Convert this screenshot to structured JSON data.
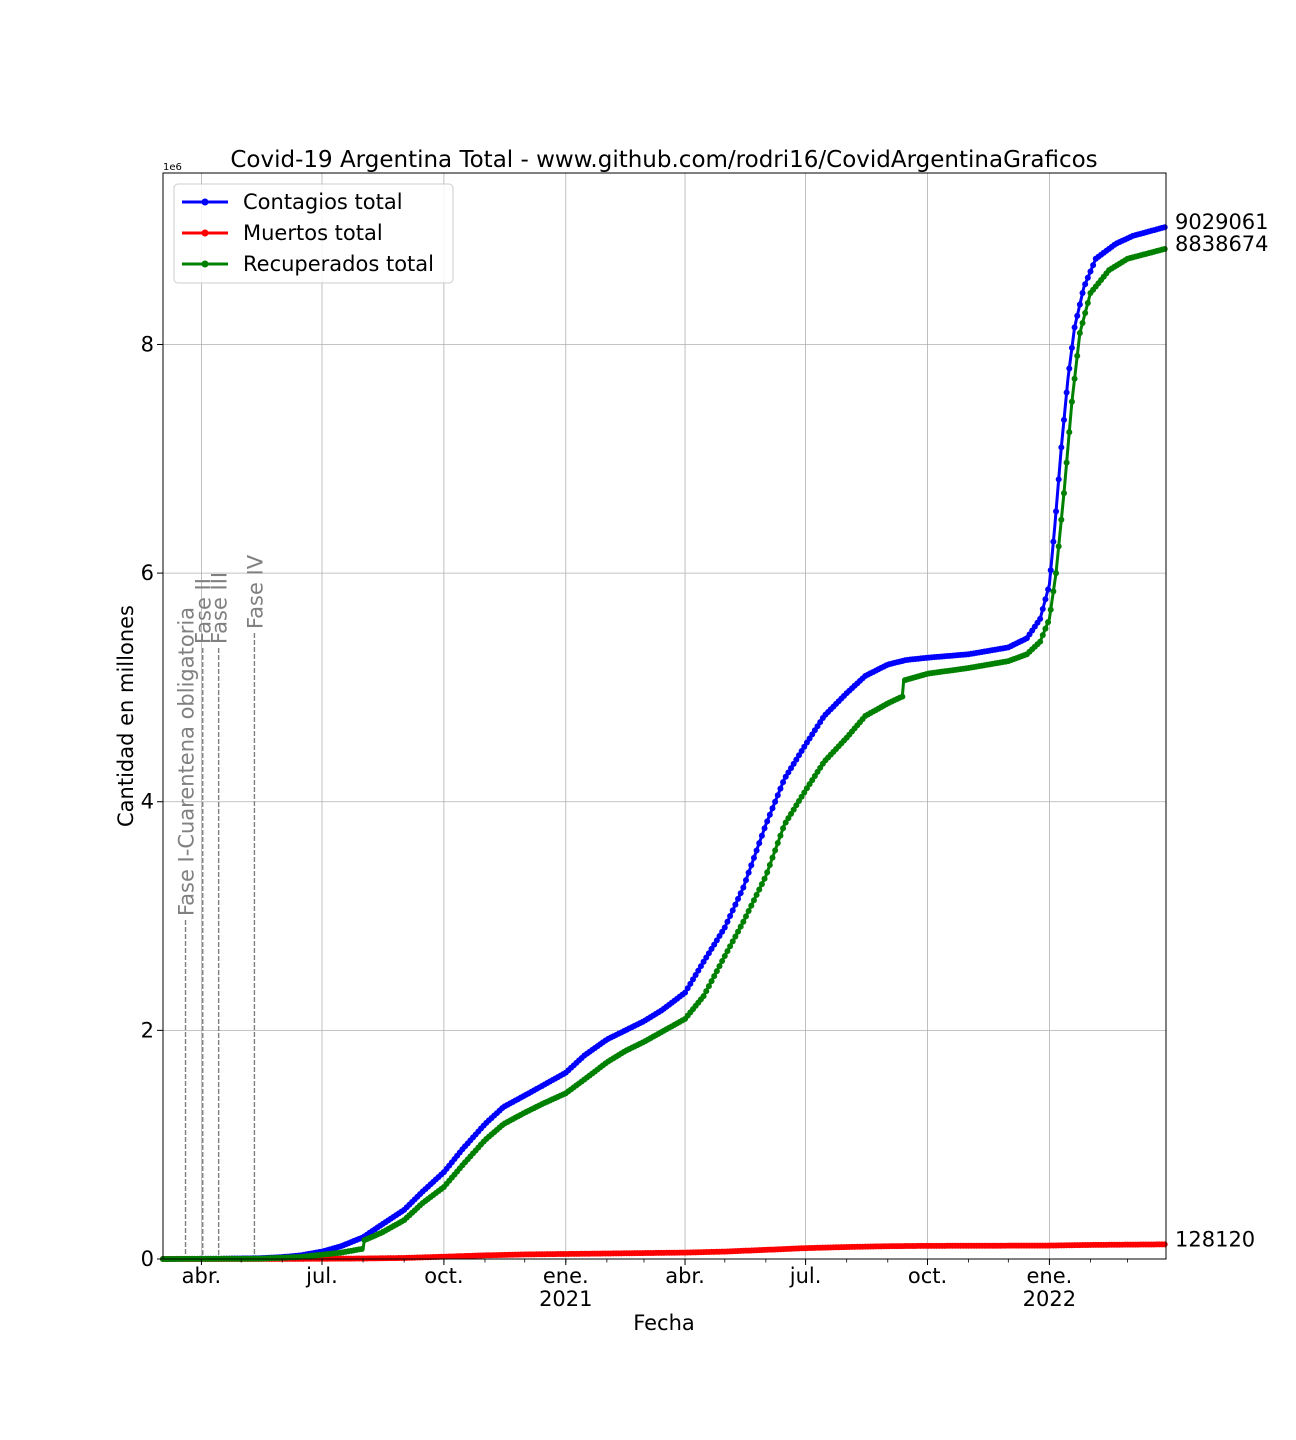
{
  "chart_data": {
    "type": "line",
    "title": "Covid-19 Argentina Total - www.github.com/rodri16/CovidArgentinaGraficos",
    "xlabel": "Fecha",
    "ylabel": "Cantidad en millones",
    "y_offset_label": "1e6",
    "ylim": [
      0,
      9500000
    ],
    "xlim": [
      "2020-03-03",
      "2022-03-30"
    ],
    "grid": true,
    "legend_position": "top-left",
    "x_ticks": [
      {
        "date": "2020-04-01",
        "label": "abr.",
        "sublabel": ""
      },
      {
        "date": "2020-07-01",
        "label": "jul.",
        "sublabel": ""
      },
      {
        "date": "2020-10-01",
        "label": "oct.",
        "sublabel": ""
      },
      {
        "date": "2021-01-01",
        "label": "ene.",
        "sublabel": "2021"
      },
      {
        "date": "2021-04-01",
        "label": "abr.",
        "sublabel": ""
      },
      {
        "date": "2021-07-01",
        "label": "jul.",
        "sublabel": ""
      },
      {
        "date": "2021-10-01",
        "label": "oct.",
        "sublabel": ""
      },
      {
        "date": "2022-01-01",
        "label": "ene.",
        "sublabel": "2022"
      }
    ],
    "y_ticks": [
      {
        "value": 0,
        "label": "0"
      },
      {
        "value": 2000000,
        "label": "2"
      },
      {
        "value": 4000000,
        "label": "4"
      },
      {
        "value": 6000000,
        "label": "6"
      },
      {
        "value": 8000000,
        "label": "8"
      }
    ],
    "phases": [
      {
        "date": "2020-03-20",
        "label": "Fase I-Cuarentena obligatoria"
      },
      {
        "date": "2020-04-02",
        "label": "Fase II"
      },
      {
        "date": "2020-04-14",
        "label": "Fase III"
      },
      {
        "date": "2020-05-11",
        "label": "Fase IV"
      }
    ],
    "series": [
      {
        "name": "Contagios total",
        "color": "#0000ff",
        "end_label": "9029061",
        "points": [
          [
            "2020-03-03",
            0
          ],
          [
            "2020-04-15",
            2500
          ],
          [
            "2020-05-15",
            7000
          ],
          [
            "2020-06-01",
            17000
          ],
          [
            "2020-06-15",
            32000
          ],
          [
            "2020-07-01",
            65000
          ],
          [
            "2020-07-15",
            110000
          ],
          [
            "2020-08-01",
            190000
          ],
          [
            "2020-08-15",
            300000
          ],
          [
            "2020-09-01",
            430000
          ],
          [
            "2020-09-15",
            590000
          ],
          [
            "2020-10-01",
            760000
          ],
          [
            "2020-10-15",
            960000
          ],
          [
            "2020-11-01",
            1180000
          ],
          [
            "2020-11-15",
            1330000
          ],
          [
            "2020-12-01",
            1430000
          ],
          [
            "2020-12-15",
            1520000
          ],
          [
            "2021-01-01",
            1630000
          ],
          [
            "2021-01-15",
            1780000
          ],
          [
            "2021-02-01",
            1920000
          ],
          [
            "2021-02-15",
            2000000
          ],
          [
            "2021-03-01",
            2080000
          ],
          [
            "2021-03-15",
            2180000
          ],
          [
            "2021-04-01",
            2330000
          ],
          [
            "2021-04-15",
            2600000
          ],
          [
            "2021-05-01",
            2900000
          ],
          [
            "2021-05-15",
            3250000
          ],
          [
            "2021-06-01",
            3800000
          ],
          [
            "2021-06-15",
            4200000
          ],
          [
            "2021-07-01",
            4500000
          ],
          [
            "2021-07-15",
            4750000
          ],
          [
            "2021-08-01",
            4950000
          ],
          [
            "2021-08-15",
            5100000
          ],
          [
            "2021-09-01",
            5200000
          ],
          [
            "2021-09-15",
            5240000
          ],
          [
            "2021-10-01",
            5260000
          ],
          [
            "2021-11-01",
            5290000
          ],
          [
            "2021-12-01",
            5350000
          ],
          [
            "2021-12-15",
            5430000
          ],
          [
            "2021-12-25",
            5600000
          ],
          [
            "2022-01-01",
            5900000
          ],
          [
            "2022-01-05",
            6400000
          ],
          [
            "2022-01-10",
            7100000
          ],
          [
            "2022-01-15",
            7700000
          ],
          [
            "2022-01-20",
            8150000
          ],
          [
            "2022-01-27",
            8500000
          ],
          [
            "2022-02-05",
            8750000
          ],
          [
            "2022-02-20",
            8880000
          ],
          [
            "2022-03-05",
            8950000
          ],
          [
            "2022-03-30",
            9029061
          ]
        ]
      },
      {
        "name": "Muertos total",
        "color": "#ff0000",
        "end_label": "128120",
        "points": [
          [
            "2020-03-03",
            0
          ],
          [
            "2020-06-01",
            600
          ],
          [
            "2020-08-01",
            4200
          ],
          [
            "2020-09-01",
            9000
          ],
          [
            "2020-10-01",
            20000
          ],
          [
            "2020-11-01",
            32000
          ],
          [
            "2020-12-01",
            40000
          ],
          [
            "2021-01-01",
            44000
          ],
          [
            "2021-02-01",
            48000
          ],
          [
            "2021-03-01",
            52000
          ],
          [
            "2021-04-01",
            56000
          ],
          [
            "2021-05-01",
            65000
          ],
          [
            "2021-06-01",
            80000
          ],
          [
            "2021-07-01",
            95000
          ],
          [
            "2021-08-01",
            105000
          ],
          [
            "2021-09-01",
            112000
          ],
          [
            "2021-10-01",
            115000
          ],
          [
            "2021-12-01",
            116500
          ],
          [
            "2022-01-01",
            117500
          ],
          [
            "2022-02-01",
            123000
          ],
          [
            "2022-03-30",
            128120
          ]
        ]
      },
      {
        "name": "Recuperados total",
        "color": "#008000",
        "end_label": "8838674",
        "points": [
          [
            "2020-03-03",
            0
          ],
          [
            "2020-05-15",
            3000
          ],
          [
            "2020-06-15",
            18000
          ],
          [
            "2020-07-15",
            55000
          ],
          [
            "2020-08-01",
            90000
          ],
          [
            "2020-08-02",
            165000
          ],
          [
            "2020-08-15",
            230000
          ],
          [
            "2020-09-01",
            340000
          ],
          [
            "2020-09-15",
            490000
          ],
          [
            "2020-10-01",
            630000
          ],
          [
            "2020-10-15",
            820000
          ],
          [
            "2020-11-01",
            1040000
          ],
          [
            "2020-11-15",
            1180000
          ],
          [
            "2020-12-01",
            1280000
          ],
          [
            "2020-12-15",
            1360000
          ],
          [
            "2021-01-01",
            1450000
          ],
          [
            "2021-01-15",
            1570000
          ],
          [
            "2021-02-01",
            1720000
          ],
          [
            "2021-02-15",
            1820000
          ],
          [
            "2021-03-01",
            1900000
          ],
          [
            "2021-03-15",
            1990000
          ],
          [
            "2021-04-01",
            2100000
          ],
          [
            "2021-04-15",
            2300000
          ],
          [
            "2021-05-01",
            2650000
          ],
          [
            "2021-05-15",
            2950000
          ],
          [
            "2021-06-01",
            3350000
          ],
          [
            "2021-06-15",
            3800000
          ],
          [
            "2021-07-01",
            4100000
          ],
          [
            "2021-07-15",
            4350000
          ],
          [
            "2021-08-01",
            4560000
          ],
          [
            "2021-08-15",
            4750000
          ],
          [
            "2021-09-01",
            4860000
          ],
          [
            "2021-09-12",
            4920000
          ],
          [
            "2021-09-13",
            5060000
          ],
          [
            "2021-10-01",
            5120000
          ],
          [
            "2021-11-01",
            5170000
          ],
          [
            "2021-12-01",
            5230000
          ],
          [
            "2021-12-15",
            5290000
          ],
          [
            "2021-12-25",
            5400000
          ],
          [
            "2022-01-01",
            5600000
          ],
          [
            "2022-01-06",
            6000000
          ],
          [
            "2022-01-12",
            6700000
          ],
          [
            "2022-01-18",
            7500000
          ],
          [
            "2022-01-24",
            8100000
          ],
          [
            "2022-02-01",
            8450000
          ],
          [
            "2022-02-15",
            8650000
          ],
          [
            "2022-03-01",
            8750000
          ],
          [
            "2022-03-30",
            8838674
          ]
        ]
      }
    ]
  }
}
